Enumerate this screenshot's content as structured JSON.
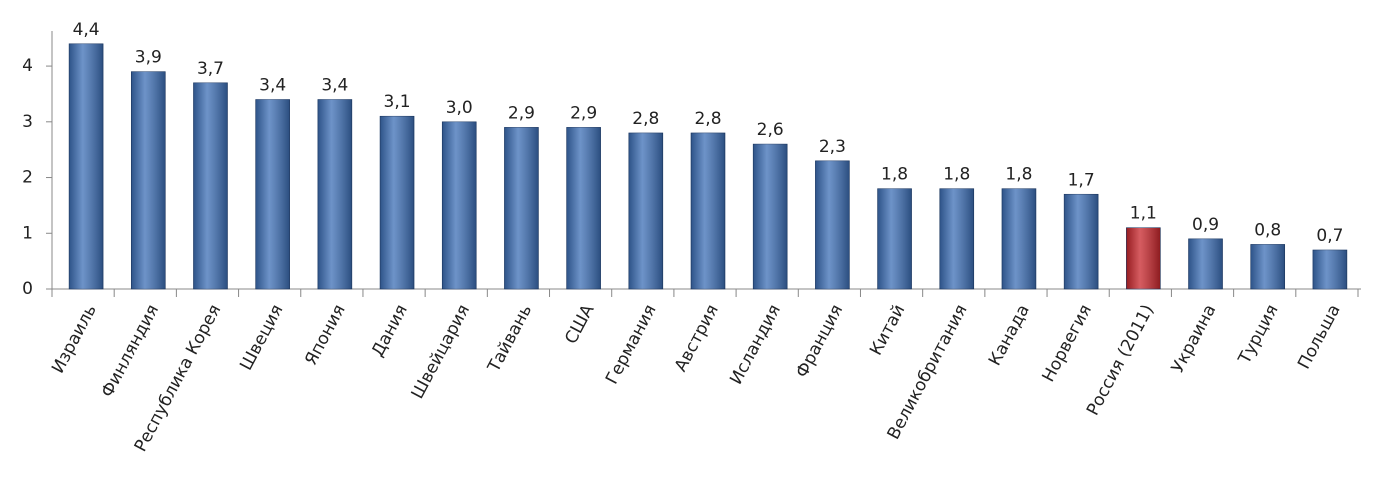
{
  "chart_data": {
    "type": "bar",
    "categories": [
      "Израиль",
      "Финляндия",
      "Республика Корея",
      "Швеция",
      "Япония",
      "Дания",
      "Швейцария",
      "Тайвань",
      "США",
      "Германия",
      "Австрия",
      "Исландия",
      "Франция",
      "Китай",
      "Великобритания",
      "Канада",
      "Норвегия",
      "Россия (2011)",
      "Украина",
      "Турция",
      "Польша"
    ],
    "values": [
      4.4,
      3.9,
      3.7,
      3.4,
      3.4,
      3.1,
      3.0,
      2.9,
      2.9,
      2.8,
      2.8,
      2.6,
      2.3,
      1.8,
      1.8,
      1.8,
      1.7,
      1.1,
      0.9,
      0.8,
      0.7
    ],
    "value_labels": [
      "4,4",
      "3,9",
      "3,7",
      "3,4",
      "3,4",
      "3,1",
      "3,0",
      "2,9",
      "2,9",
      "2,8",
      "2,8",
      "2,6",
      "2,3",
      "1,8",
      "1,8",
      "1,8",
      "1,7",
      "1,1",
      "0,9",
      "0,8",
      "0,7"
    ],
    "colors": [
      "#3d6fb6",
      "#3d6fb6",
      "#3d6fb6",
      "#3d6fb6",
      "#3d6fb6",
      "#3d6fb6",
      "#3d6fb6",
      "#3d6fb6",
      "#3d6fb6",
      "#3d6fb6",
      "#3d6fb6",
      "#3d6fb6",
      "#3d6fb6",
      "#3d6fb6",
      "#3d6fb6",
      "#3d6fb6",
      "#3d6fb6",
      "#c8262c",
      "#3d6fb6",
      "#3d6fb6",
      "#3d6fb6"
    ],
    "ylim": [
      0,
      4.45
    ],
    "yticks": [
      0,
      1,
      2,
      3,
      4
    ],
    "grid": false
  }
}
